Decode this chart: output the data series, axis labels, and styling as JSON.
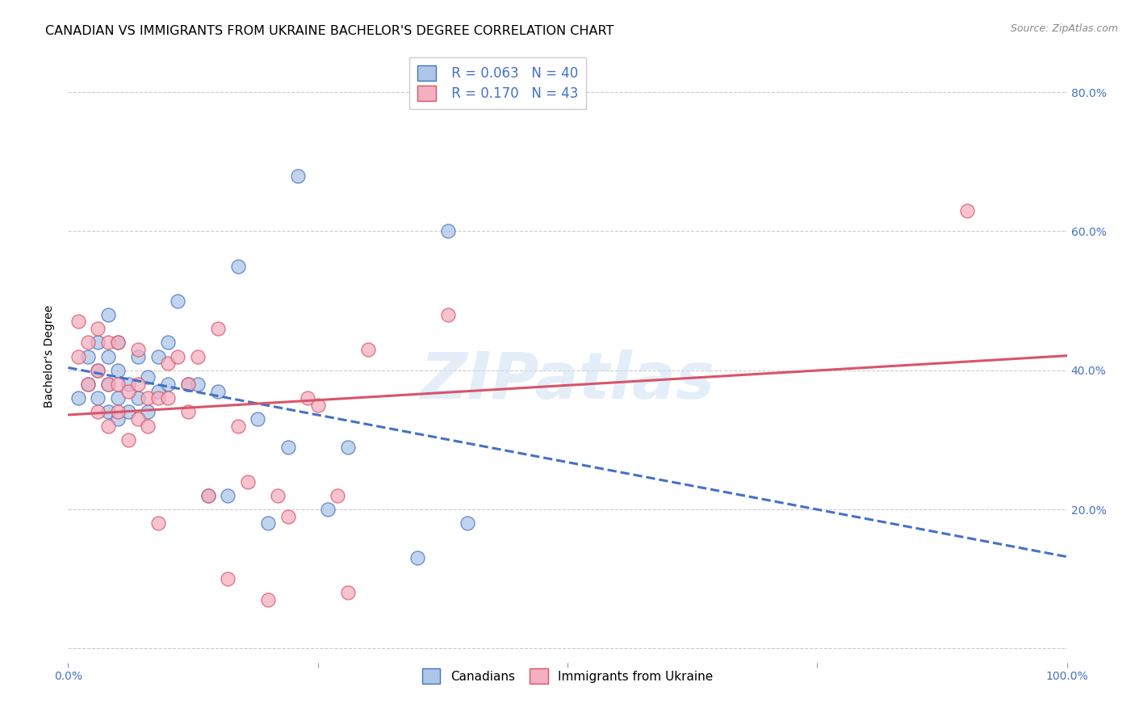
{
  "title": "CANADIAN VS IMMIGRANTS FROM UKRAINE BACHELOR'S DEGREE CORRELATION CHART",
  "source": "Source: ZipAtlas.com",
  "ylabel": "Bachelor's Degree",
  "watermark": "ZIPatlas",
  "canadians_R": 0.063,
  "canadians_N": 40,
  "ukraine_R": 0.17,
  "ukraine_N": 43,
  "canadians_color": "#aec6e8",
  "ukraine_color": "#f4afc0",
  "canadians_line_color": "#4472c4",
  "ukraine_line_color": "#d9546a",
  "label_color": "#4472c4",
  "canadians_x": [
    0.01,
    0.02,
    0.02,
    0.03,
    0.03,
    0.03,
    0.04,
    0.04,
    0.04,
    0.04,
    0.05,
    0.05,
    0.05,
    0.05,
    0.06,
    0.06,
    0.07,
    0.07,
    0.08,
    0.08,
    0.09,
    0.09,
    0.1,
    0.1,
    0.11,
    0.12,
    0.13,
    0.14,
    0.15,
    0.16,
    0.17,
    0.19,
    0.2,
    0.22,
    0.23,
    0.26,
    0.28,
    0.35,
    0.38,
    0.4
  ],
  "canadians_y": [
    0.36,
    0.38,
    0.42,
    0.36,
    0.4,
    0.44,
    0.34,
    0.38,
    0.42,
    0.48,
    0.33,
    0.36,
    0.4,
    0.44,
    0.34,
    0.38,
    0.36,
    0.42,
    0.34,
    0.39,
    0.37,
    0.42,
    0.38,
    0.44,
    0.5,
    0.38,
    0.38,
    0.22,
    0.37,
    0.22,
    0.55,
    0.33,
    0.18,
    0.29,
    0.68,
    0.2,
    0.29,
    0.13,
    0.6,
    0.18
  ],
  "ukraine_x": [
    0.01,
    0.01,
    0.02,
    0.02,
    0.03,
    0.03,
    0.03,
    0.04,
    0.04,
    0.04,
    0.05,
    0.05,
    0.05,
    0.06,
    0.06,
    0.07,
    0.07,
    0.07,
    0.08,
    0.08,
    0.09,
    0.09,
    0.1,
    0.1,
    0.11,
    0.12,
    0.12,
    0.13,
    0.14,
    0.15,
    0.16,
    0.17,
    0.18,
    0.2,
    0.21,
    0.22,
    0.24,
    0.25,
    0.27,
    0.28,
    0.3,
    0.38,
    0.9
  ],
  "ukraine_y": [
    0.42,
    0.47,
    0.38,
    0.44,
    0.34,
    0.4,
    0.46,
    0.32,
    0.38,
    0.44,
    0.34,
    0.38,
    0.44,
    0.3,
    0.37,
    0.33,
    0.38,
    0.43,
    0.32,
    0.36,
    0.18,
    0.36,
    0.36,
    0.41,
    0.42,
    0.34,
    0.38,
    0.42,
    0.22,
    0.46,
    0.1,
    0.32,
    0.24,
    0.07,
    0.22,
    0.19,
    0.36,
    0.35,
    0.22,
    0.08,
    0.43,
    0.48,
    0.63
  ],
  "xlim": [
    0.0,
    1.0
  ],
  "ylim": [
    -0.02,
    0.86
  ],
  "ytick_positions": [
    0.0,
    0.2,
    0.4,
    0.6,
    0.8
  ],
  "ytick_labels_right": [
    "",
    "20.0%",
    "40.0%",
    "60.0%",
    "80.0%"
  ],
  "xtick_positions": [
    0.0,
    0.25,
    0.5,
    0.75,
    1.0
  ],
  "xtick_labels": [
    "0.0%",
    "",
    "",
    "",
    "100.0%"
  ],
  "grid_color": "#cccccc",
  "background_color": "#ffffff",
  "title_fontsize": 11.5,
  "axis_label_fontsize": 10,
  "tick_fontsize": 10,
  "legend_fontsize": 12
}
